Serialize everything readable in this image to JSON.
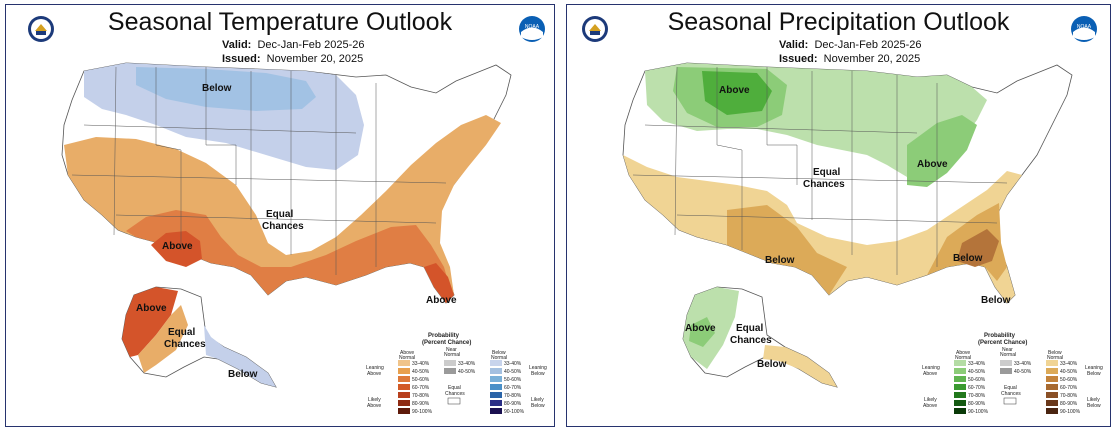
{
  "temperature": {
    "title": "Seasonal Temperature Outlook",
    "valid_label": "Valid:",
    "valid_value": "Dec-Jan-Feb 2025-26",
    "issued_label": "Issued:",
    "issued_value": "November 20, 2025",
    "regions": {
      "below": "Below",
      "equal_1": "Equal",
      "equal_2": "Chances",
      "above_sw": "Above",
      "above_fl": "Above",
      "above_ak": "Above",
      "ak_equal_1": "Equal",
      "ak_equal_2": "Chances",
      "below_ak": "Below"
    },
    "legend": {
      "title_1": "Probability",
      "title_2": "(Percent Chance)",
      "col_above_1": "Above",
      "col_above_2": "Normal",
      "col_near_1": "Near",
      "col_near_2": "Normal",
      "col_below_1": "Below",
      "col_below_2": "Normal",
      "leaning_above_1": "Leaning",
      "leaning_above_2": "Above",
      "likely_above_1": "Likely",
      "likely_above_2": "Above",
      "leaning_below_1": "Leaning",
      "leaning_below_2": "Below",
      "likely_below_1": "Likely",
      "likely_below_2": "Below",
      "equal_1": "Equal",
      "equal_2": "Chances",
      "ranges": [
        "33-40%",
        "40-50%",
        "50-60%",
        "60-70%",
        "70-80%",
        "80-90%",
        "90-100%"
      ],
      "near_ranges": [
        "33-40%",
        "40-50%"
      ],
      "above_colors": [
        "#f0c48a",
        "#e8a04e",
        "#de7a3a",
        "#d25a26",
        "#b8401e",
        "#8e2a12",
        "#5e1a0a"
      ],
      "near_colors": [
        "#cccccc",
        "#9a9a9a"
      ],
      "below_colors": [
        "#c8d4ec",
        "#a4c0e0",
        "#7ab0d8",
        "#4a90c8",
        "#2a64a8",
        "#2a2e86",
        "#1a1050"
      ]
    }
  },
  "precipitation": {
    "title": "Seasonal Precipitation Outlook",
    "valid_label": "Valid:",
    "valid_value": "Dec-Jan-Feb 2025-26",
    "issued_label": "Issued:",
    "issued_value": "November 20, 2025",
    "regions": {
      "above_nw": "Above",
      "equal_1": "Equal",
      "equal_2": "Chances",
      "above_ov": "Above",
      "below_sw": "Below",
      "below_se": "Below",
      "below_fl": "Below",
      "above_ak": "Above",
      "ak_equal_1": "Equal",
      "ak_equal_2": "Chances",
      "below_ak": "Below"
    },
    "legend": {
      "title_1": "Probability",
      "title_2": "(Percent Chance)",
      "col_above_1": "Above",
      "col_above_2": "Normal",
      "col_near_1": "Near",
      "col_near_2": "Normal",
      "col_below_1": "Below",
      "col_below_2": "Normal",
      "leaning_above_1": "Leaning",
      "leaning_above_2": "Above",
      "likely_above_1": "Likely",
      "likely_above_2": "Above",
      "leaning_below_1": "Leaning",
      "leaning_below_2": "Below",
      "likely_below_1": "Likely",
      "likely_below_2": "Below",
      "equal_1": "Equal",
      "equal_2": "Chances",
      "ranges": [
        "33-40%",
        "40-50%",
        "50-60%",
        "60-70%",
        "70-80%",
        "80-90%",
        "90-100%"
      ],
      "near_ranges": [
        "33-40%",
        "40-50%"
      ],
      "above_colors": [
        "#b4dca4",
        "#8ccc78",
        "#60b450",
        "#3a9a30",
        "#22781c",
        "#145a12",
        "#0a3a08"
      ],
      "near_colors": [
        "#cccccc",
        "#9a9a9a"
      ],
      "below_colors": [
        "#f0d494",
        "#dcaa58",
        "#c4843c",
        "#a86a30",
        "#8a5026",
        "#6a381a",
        "#4a2410"
      ]
    }
  },
  "logo_text": "NOAA",
  "colors": {
    "frame": "#27336e",
    "temp_below": "#b8c8e8",
    "temp_below_dark": "#9ebedf",
    "temp_above_1": "#e8a860",
    "temp_above_2": "#e07c44",
    "temp_above_3": "#d65428",
    "prec_above_1": "#b8dea8",
    "prec_above_2": "#8ccc78",
    "prec_above_3": "#5ab24a",
    "prec_below_1": "#f0d494",
    "prec_below_2": "#dcaa58",
    "prec_below_3": "#b4743a"
  }
}
